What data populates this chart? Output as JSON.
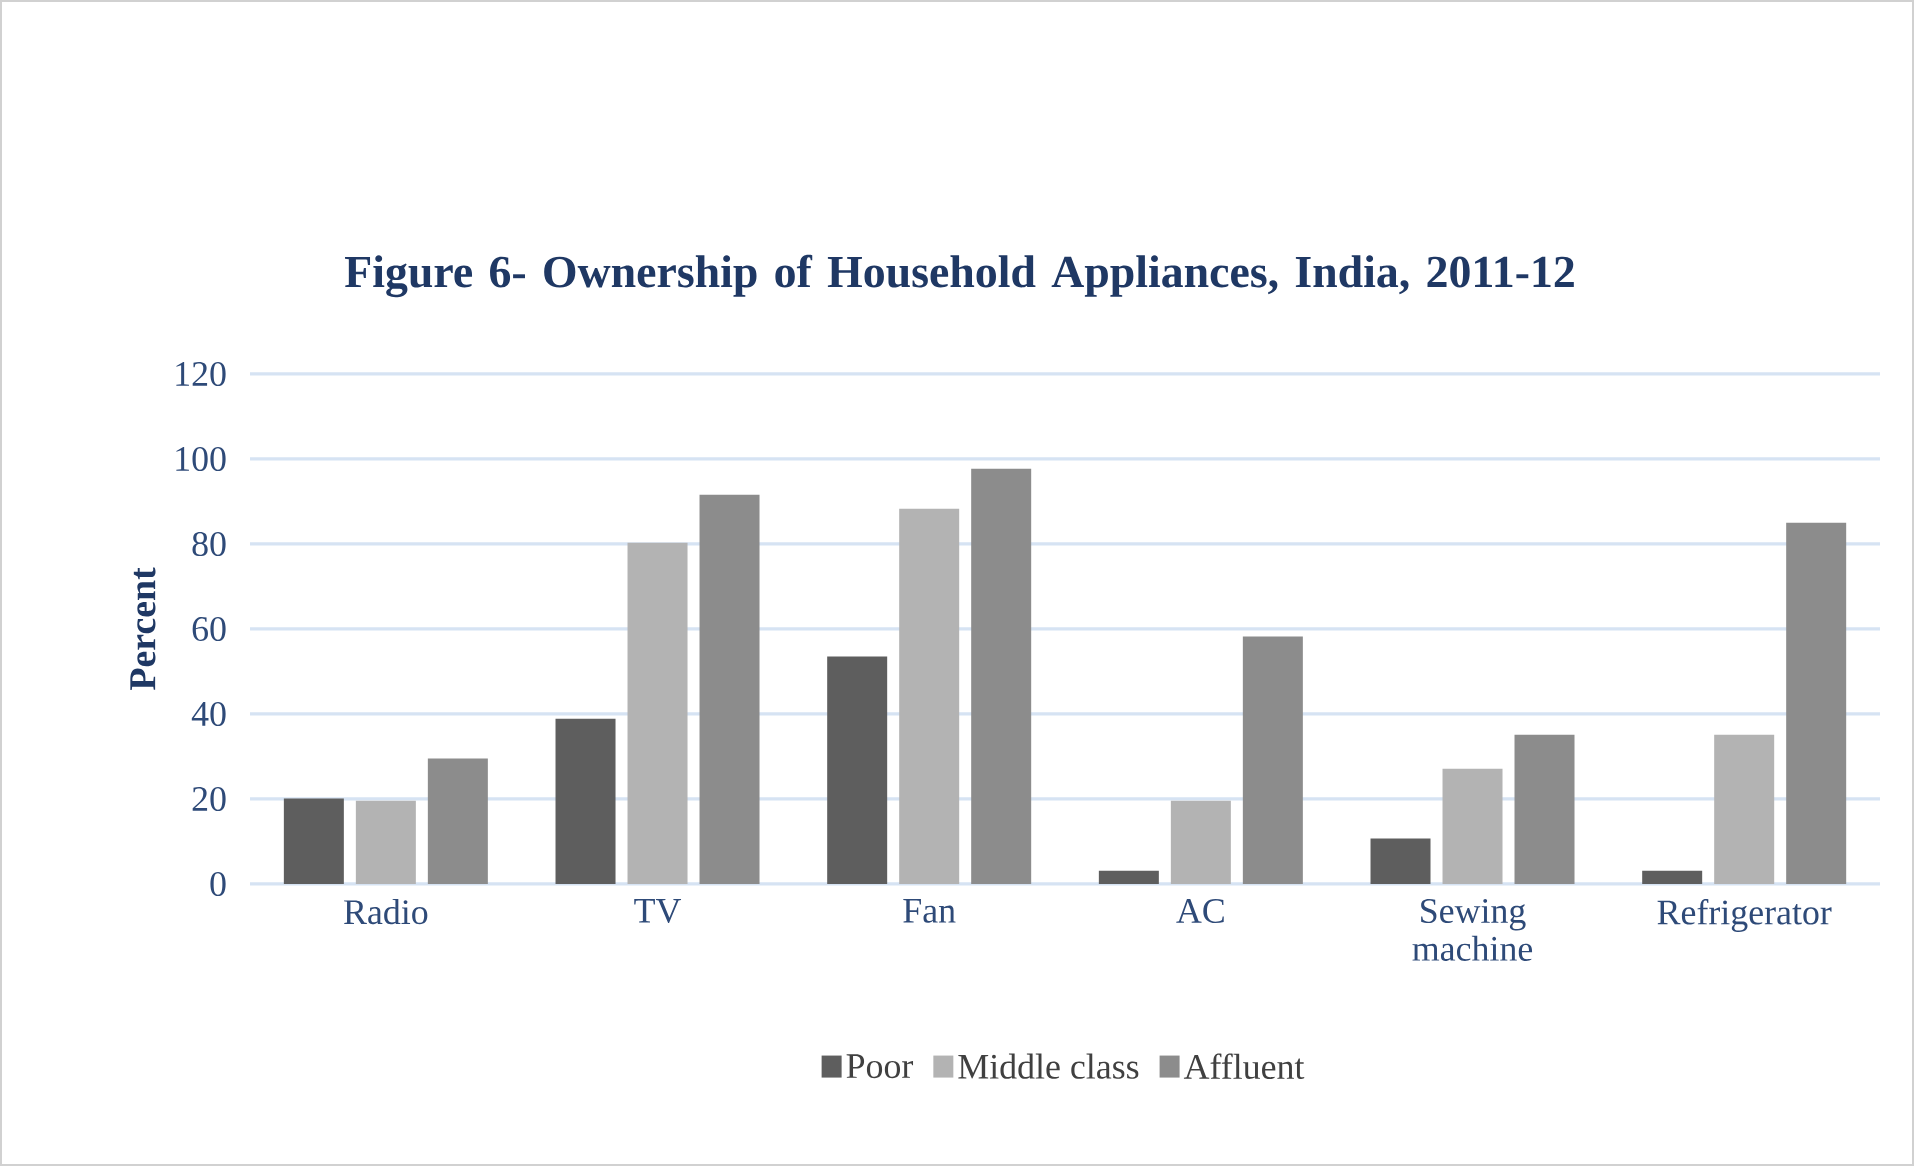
{
  "chart_data": {
    "type": "bar",
    "title": "Figure 6- Ownership of Household Appliances, India, 2011-12",
    "ylabel": "Percent",
    "categories": [
      "Radio",
      "TV",
      "Fan",
      "AC",
      "Sewing machine",
      "Refrigerator"
    ],
    "series": [
      {
        "name": "Poor",
        "color": "#5e5e5e",
        "values": [
          20.1,
          38.9,
          53.5,
          3.1,
          10.7,
          3.1
        ]
      },
      {
        "name": "Middle class",
        "color": "#b3b3b3",
        "values": [
          19.6,
          80.3,
          88.3,
          19.6,
          27.1,
          35.1
        ]
      },
      {
        "name": "Affluent",
        "color": "#8c8c8c",
        "values": [
          29.5,
          91.6,
          97.7,
          58.2,
          35.1,
          85
        ]
      }
    ],
    "ylim": [
      0,
      120
    ],
    "yticks": [
      0,
      20,
      40,
      60,
      80,
      100,
      120
    ],
    "grid": "y",
    "legend": "bottom"
  }
}
